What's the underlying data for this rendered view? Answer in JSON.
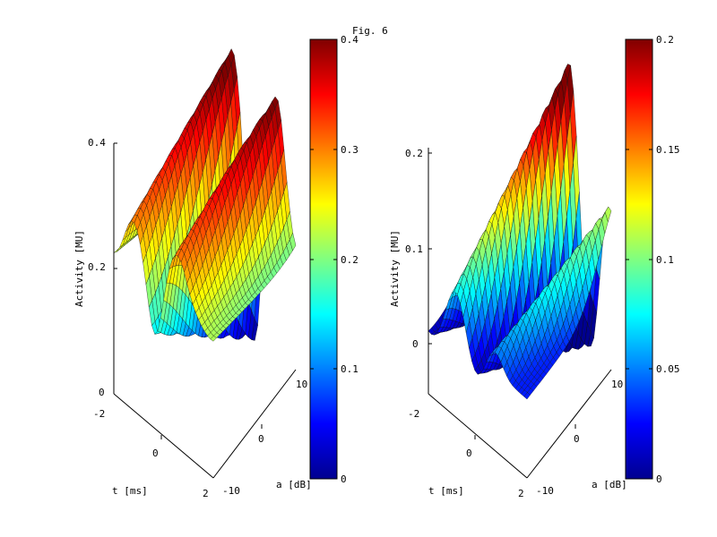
{
  "figure_title": "Fig. 6",
  "chart_data": [
    {
      "type": "surface",
      "xlabel": "t [ms]",
      "ylabel": "a [dB]",
      "zlabel": "Activity [MU]",
      "xticks": [
        "-2",
        "0",
        "2"
      ],
      "yticks": [
        "-10",
        "0",
        "10"
      ],
      "zticks": [
        "0",
        "0.2",
        "0.4"
      ],
      "xlim": [
        -2,
        2
      ],
      "ylim": [
        -10,
        10
      ],
      "zlim": [
        0,
        0.4
      ],
      "colorbar": {
        "ticks": [
          "0",
          "0.1",
          "0.2",
          "0.3",
          "0.4"
        ],
        "clim": [
          0,
          0.4
        ]
      },
      "colormap": "jet",
      "surface": {
        "base": 0.24,
        "ridges": [
          {
            "t": -0.9,
            "slope": 0.035,
            "amp": 0.15,
            "width": 0.35
          },
          {
            "t": 0.9,
            "slope": 0.035,
            "amp": 0.15,
            "width": 0.35
          }
        ],
        "troughs": [
          {
            "t": 0.0,
            "slope": 0.035,
            "amp": -0.21,
            "width": 0.28
          },
          {
            "t": -1.9,
            "slope": 0.0,
            "amp": -0.05,
            "width": 0.4
          },
          {
            "t": 1.9,
            "slope": 0.0,
            "amp": -0.05,
            "width": 0.4
          }
        ],
        "gain_by_a": {
          "min": 0.45,
          "max": 1.25
        }
      }
    },
    {
      "type": "surface",
      "xlabel": "t [ms]",
      "ylabel": "a [dB]",
      "zlabel": "Activity [MU]",
      "xticks": [
        "-2",
        "0",
        "2"
      ],
      "yticks": [
        "-10",
        "0",
        "10"
      ],
      "zticks": [
        "0",
        "0.1",
        "0.2"
      ],
      "xlim": [
        -2,
        2
      ],
      "ylim": [
        -10,
        10
      ],
      "zlim": [
        -0.05,
        0.2
      ],
      "colorbar": {
        "ticks": [
          "0",
          "0.05",
          "0.1",
          "0.15",
          "0.2"
        ],
        "clim": [
          0,
          0.2
        ]
      },
      "colormap": "jet",
      "surface": {
        "base": 0.03,
        "ridges": [
          {
            "t": -0.3,
            "slope": 0.06,
            "amp": 0.16,
            "width": 0.35
          },
          {
            "t": 1.3,
            "slope": 0.06,
            "amp": 0.07,
            "width": 0.3
          }
        ],
        "troughs": [
          {
            "t": 0.55,
            "slope": 0.06,
            "amp": -0.07,
            "width": 0.3
          },
          {
            "t": -1.25,
            "slope": 0.06,
            "amp": -0.06,
            "width": 0.35
          }
        ],
        "gain_by_a": {
          "min": 0.3,
          "max": 1.25
        }
      }
    }
  ]
}
